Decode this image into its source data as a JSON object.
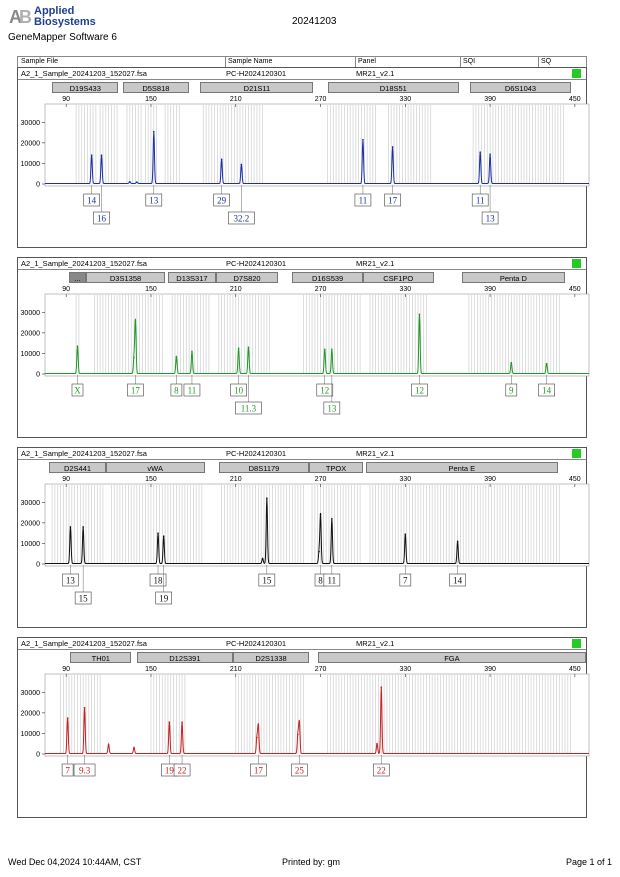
{
  "header": {
    "brand_line1": "Applied",
    "brand_line2": "Biosystems",
    "app_name": "GeneMapper Software 6",
    "run_date": "20241203"
  },
  "columns": [
    "Sample File",
    "Sample Name",
    "Panel",
    "SQI",
    "SQ"
  ],
  "footer": {
    "printed_date": "Wed Dec 04,2024 10:44AM, CST",
    "printed_by": "Printed by: gm",
    "page": "Page 1 of 1"
  },
  "chart_data": [
    {
      "type": "line",
      "sample_file": "A2_1_Sample_20241203_152027.fsa",
      "sample_name": "PC-H2024120301",
      "panel": "MR21_v2.1",
      "sqi_color": "#22cc22",
      "dye_color": "#1a2fa8",
      "xlim": [
        75,
        460
      ],
      "ylim": [
        0,
        35000
      ],
      "x_ticks": [
        90,
        150,
        210,
        270,
        330,
        390,
        450
      ],
      "y_ticks": [
        0,
        10000,
        20000,
        30000
      ],
      "markers": [
        {
          "label": "D19S433",
          "range": [
            80,
            127
          ]
        },
        {
          "label": "D5S818",
          "range": [
            130,
            177
          ]
        },
        {
          "label": "D21S11",
          "range": [
            185,
            265
          ]
        },
        {
          "label": "D18S51",
          "range": [
            275,
            368
          ]
        },
        {
          "label": "D6S1043",
          "range": [
            376,
            447
          ]
        }
      ],
      "peaks": [
        {
          "x": 108,
          "y": 14000
        },
        {
          "x": 115,
          "y": 14000
        },
        {
          "x": 152,
          "y": 25500
        },
        {
          "x": 200,
          "y": 12000
        },
        {
          "x": 214,
          "y": 9500
        },
        {
          "x": 300,
          "y": 21500
        },
        {
          "x": 321,
          "y": 18000
        },
        {
          "x": 383,
          "y": 15500
        },
        {
          "x": 390,
          "y": 14500
        },
        {
          "x": 135,
          "y": 1000
        },
        {
          "x": 140,
          "y": 800
        }
      ],
      "alleles": [
        {
          "label": "14",
          "x": 108,
          "row": 1
        },
        {
          "label": "16",
          "x": 115,
          "row": 2
        },
        {
          "label": "13",
          "x": 152,
          "row": 1
        },
        {
          "label": "29",
          "x": 200,
          "row": 1
        },
        {
          "label": "32.2",
          "x": 214,
          "row": 2
        },
        {
          "label": "11",
          "x": 300,
          "row": 1
        },
        {
          "label": "17",
          "x": 321,
          "row": 1
        },
        {
          "label": "11",
          "x": 383,
          "row": 1
        },
        {
          "label": "13",
          "x": 390,
          "row": 2
        }
      ],
      "bins": [
        [
          97,
          112
        ],
        [
          114,
          127
        ],
        [
          133,
          144
        ],
        [
          146,
          155
        ],
        [
          160,
          170
        ],
        [
          187,
          230
        ],
        [
          275,
          310
        ],
        [
          318,
          348
        ],
        [
          378,
          442
        ]
      ]
    },
    {
      "type": "line",
      "sample_file": "A2_1_Sample_20241203_152027.fsa",
      "sample_name": "PC-H2024120301",
      "panel": "MR21_v2.1",
      "sqi_color": "#22cc22",
      "dye_color": "#1f9a2a",
      "xlim": [
        75,
        460
      ],
      "ylim": [
        0,
        35000
      ],
      "x_ticks": [
        90,
        150,
        210,
        270,
        330,
        390,
        450
      ],
      "y_ticks": [
        0,
        10000,
        20000,
        30000
      ],
      "markers": [
        {
          "label": "...",
          "range": [
            92,
            104
          ]
        },
        {
          "label": "D3S1358",
          "range": [
            104,
            160
          ]
        },
        {
          "label": "D13S317",
          "range": [
            162,
            196
          ]
        },
        {
          "label": "D7S820",
          "range": [
            196,
            240
          ]
        },
        {
          "label": "D16S539",
          "range": [
            250,
            300
          ]
        },
        {
          "label": "CSF1PO",
          "range": [
            300,
            350
          ]
        },
        {
          "label": "Penta D",
          "range": [
            370,
            443
          ]
        }
      ],
      "peaks": [
        {
          "x": 98,
          "y": 13500
        },
        {
          "x": 139,
          "y": 26000
        },
        {
          "x": 138,
          "y": 8000
        },
        {
          "x": 168,
          "y": 8500
        },
        {
          "x": 179,
          "y": 11000
        },
        {
          "x": 212,
          "y": 12500
        },
        {
          "x": 219,
          "y": 13000
        },
        {
          "x": 273,
          "y": 12000
        },
        {
          "x": 278,
          "y": 12000
        },
        {
          "x": 340,
          "y": 29000
        },
        {
          "x": 405,
          "y": 5500
        },
        {
          "x": 430,
          "y": 5000
        }
      ],
      "alleles": [
        {
          "label": "X",
          "x": 98,
          "row": 1
        },
        {
          "label": "17",
          "x": 139,
          "row": 1
        },
        {
          "label": "8",
          "x": 168,
          "row": 1
        },
        {
          "label": "11",
          "x": 179,
          "row": 1
        },
        {
          "label": "10",
          "x": 212,
          "row": 1
        },
        {
          "label": "11.3",
          "x": 219,
          "row": 2
        },
        {
          "label": "12",
          "x": 273,
          "row": 1
        },
        {
          "label": "13",
          "x": 278,
          "row": 2
        },
        {
          "label": "12",
          "x": 340,
          "row": 1
        },
        {
          "label": "9",
          "x": 405,
          "row": 1
        },
        {
          "label": "14",
          "x": 430,
          "row": 1
        }
      ],
      "bins": [
        [
          97,
          100
        ],
        [
          110,
          158
        ],
        [
          165,
          192
        ],
        [
          198,
          235
        ],
        [
          258,
          298
        ],
        [
          305,
          345
        ],
        [
          375,
          440
        ]
      ]
    },
    {
      "type": "line",
      "sample_file": "A2_1_Sample_20241203_152027.fsa",
      "sample_name": "PC-H2024120301",
      "panel": "MR21_v2.1",
      "sqi_color": "#22cc22",
      "dye_color": "#111111",
      "xlim": [
        75,
        460
      ],
      "ylim": [
        0,
        35000
      ],
      "x_ticks": [
        90,
        150,
        210,
        270,
        330,
        390,
        450
      ],
      "y_ticks": [
        0,
        10000,
        20000,
        30000
      ],
      "markers": [
        {
          "label": "D2S441",
          "range": [
            78,
            118
          ]
        },
        {
          "label": "vWA",
          "range": [
            118,
            188
          ]
        },
        {
          "label": "D8S1179",
          "range": [
            198,
            262
          ]
        },
        {
          "label": "TPOX",
          "range": [
            262,
            300
          ]
        },
        {
          "label": "Penta E",
          "range": [
            302,
            438
          ]
        }
      ],
      "peaks": [
        {
          "x": 93,
          "y": 18000
        },
        {
          "x": 102,
          "y": 18000
        },
        {
          "x": 155,
          "y": 15000
        },
        {
          "x": 159,
          "y": 13500
        },
        {
          "x": 232,
          "y": 32000
        },
        {
          "x": 270,
          "y": 24000
        },
        {
          "x": 278,
          "y": 22000
        },
        {
          "x": 330,
          "y": 14500
        },
        {
          "x": 367,
          "y": 11000
        },
        {
          "x": 229,
          "y": 2500
        },
        {
          "x": 269,
          "y": 6000
        }
      ],
      "alleles": [
        {
          "label": "13",
          "x": 93,
          "row": 1
        },
        {
          "label": "15",
          "x": 102,
          "row": 2
        },
        {
          "label": "18",
          "x": 155,
          "row": 1
        },
        {
          "label": "19",
          "x": 159,
          "row": 2
        },
        {
          "label": "15",
          "x": 232,
          "row": 1
        },
        {
          "label": "8",
          "x": 270,
          "row": 1
        },
        {
          "label": "11",
          "x": 278,
          "row": 1
        },
        {
          "label": "7",
          "x": 330,
          "row": 1
        },
        {
          "label": "14",
          "x": 367,
          "row": 1
        }
      ],
      "bins": [
        [
          80,
          116
        ],
        [
          122,
          186
        ],
        [
          200,
          258
        ],
        [
          264,
          298
        ],
        [
          305,
          440
        ]
      ]
    },
    {
      "type": "line",
      "sample_file": "A2_1_Sample_20241203_152027.fsa",
      "sample_name": "PC-H2024120301",
      "panel": "MR21_v2.1",
      "sqi_color": "#22cc22",
      "dye_color": "#c82020",
      "xlim": [
        75,
        460
      ],
      "ylim": [
        0,
        35000
      ],
      "x_ticks": [
        90,
        150,
        210,
        270,
        330,
        390,
        450
      ],
      "y_ticks": [
        0,
        10000,
        20000,
        30000
      ],
      "markers": [
        {
          "label": "TH01",
          "range": [
            93,
            136
          ]
        },
        {
          "label": "D12S391",
          "range": [
            140,
            208
          ]
        },
        {
          "label": "D2S1338",
          "range": [
            208,
            262
          ]
        },
        {
          "label": "FGA",
          "range": [
            268,
            458
          ]
        }
      ],
      "peaks": [
        {
          "x": 91,
          "y": 17500
        },
        {
          "x": 103,
          "y": 22500
        },
        {
          "x": 120,
          "y": 4500
        },
        {
          "x": 138,
          "y": 3000
        },
        {
          "x": 163,
          "y": 15500
        },
        {
          "x": 172,
          "y": 15500
        },
        {
          "x": 226,
          "y": 14000
        },
        {
          "x": 255,
          "y": 15500
        },
        {
          "x": 313,
          "y": 32500
        },
        {
          "x": 225,
          "y": 8000
        },
        {
          "x": 254,
          "y": 9500
        },
        {
          "x": 310,
          "y": 5000
        }
      ],
      "alleles": [
        {
          "label": "7",
          "x": 91,
          "row": 1
        },
        {
          "label": "9.3",
          "x": 103,
          "row": 1
        },
        {
          "label": "19",
          "x": 163,
          "row": 1
        },
        {
          "label": "22",
          "x": 172,
          "row": 1
        },
        {
          "label": "17",
          "x": 226,
          "row": 1
        },
        {
          "label": "25",
          "x": 255,
          "row": 1
        },
        {
          "label": "22",
          "x": 313,
          "row": 1
        }
      ],
      "bins": [
        [
          86,
          114
        ],
        [
          150,
          175
        ],
        [
          210,
          258
        ],
        [
          275,
          448
        ]
      ]
    }
  ]
}
